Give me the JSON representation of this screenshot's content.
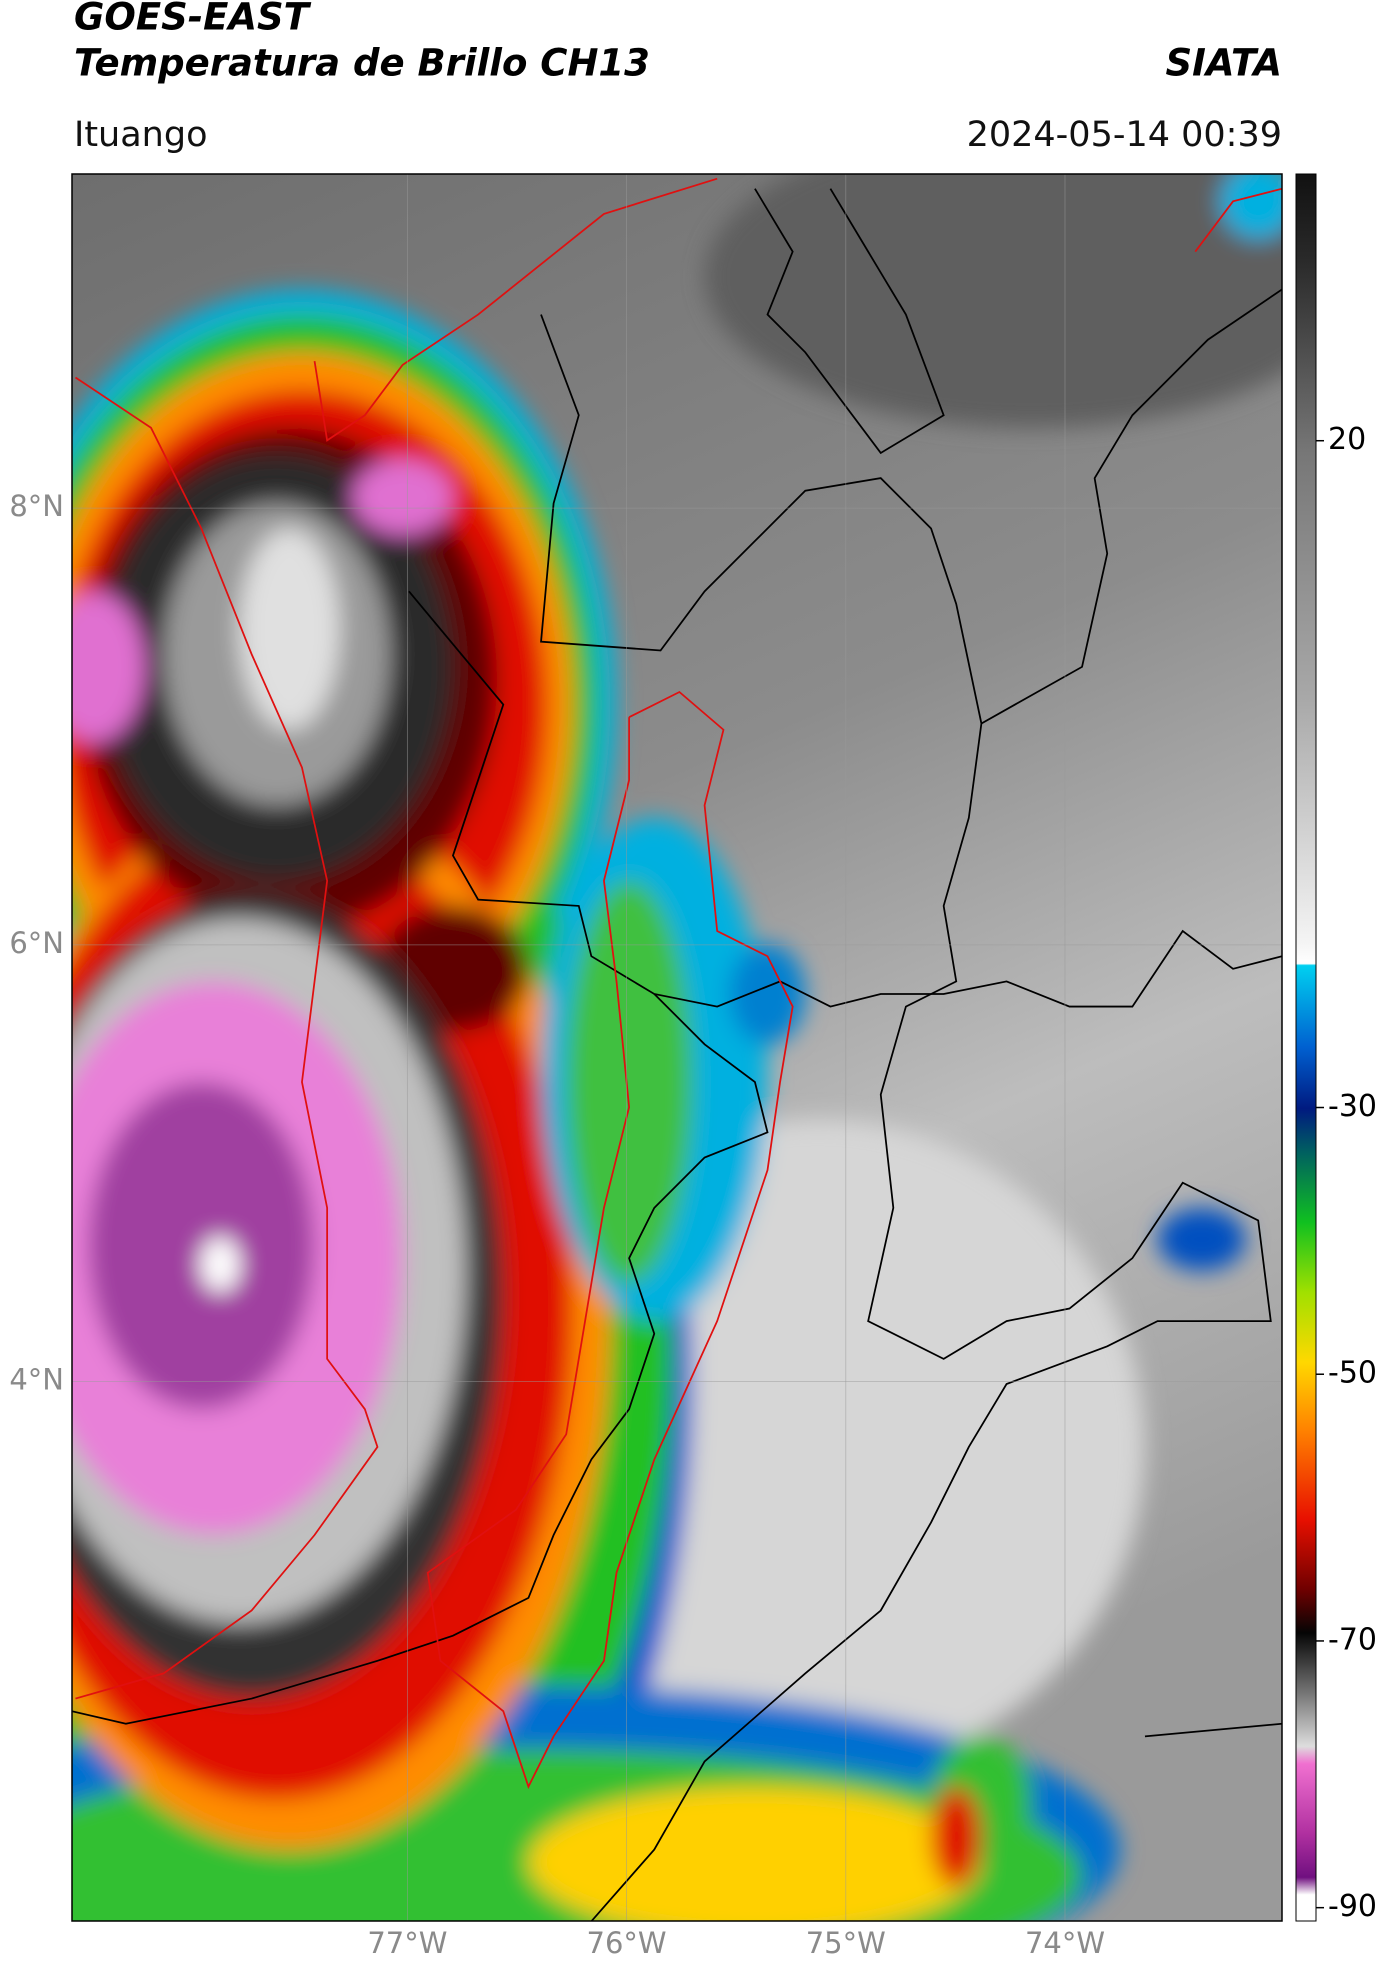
{
  "map": {
    "title": "GOES-EAST",
    "subtitle": "Temperatura de Brillo CH13",
    "source": "SIATA",
    "location": "Ituango",
    "datetime": "2024-05-14 00:39",
    "xlim": [
      -78.53,
      -73.01
    ],
    "ylim": [
      1.53,
      9.53
    ],
    "xticks": [
      {
        "value": -77,
        "label": "77°W"
      },
      {
        "value": -76,
        "label": "76°W"
      },
      {
        "value": -75,
        "label": "75°W"
      },
      {
        "value": -74,
        "label": "74°W"
      }
    ],
    "yticks": [
      {
        "value": 8,
        "label": "8°N"
      },
      {
        "value": 6,
        "label": "6°N"
      },
      {
        "value": 4,
        "label": "4°N"
      }
    ],
    "grid": true,
    "colorbar": {
      "clim": [
        -91,
        40
      ],
      "ticks": [
        20,
        -30,
        -50,
        -70,
        -90
      ]
    }
  }
}
